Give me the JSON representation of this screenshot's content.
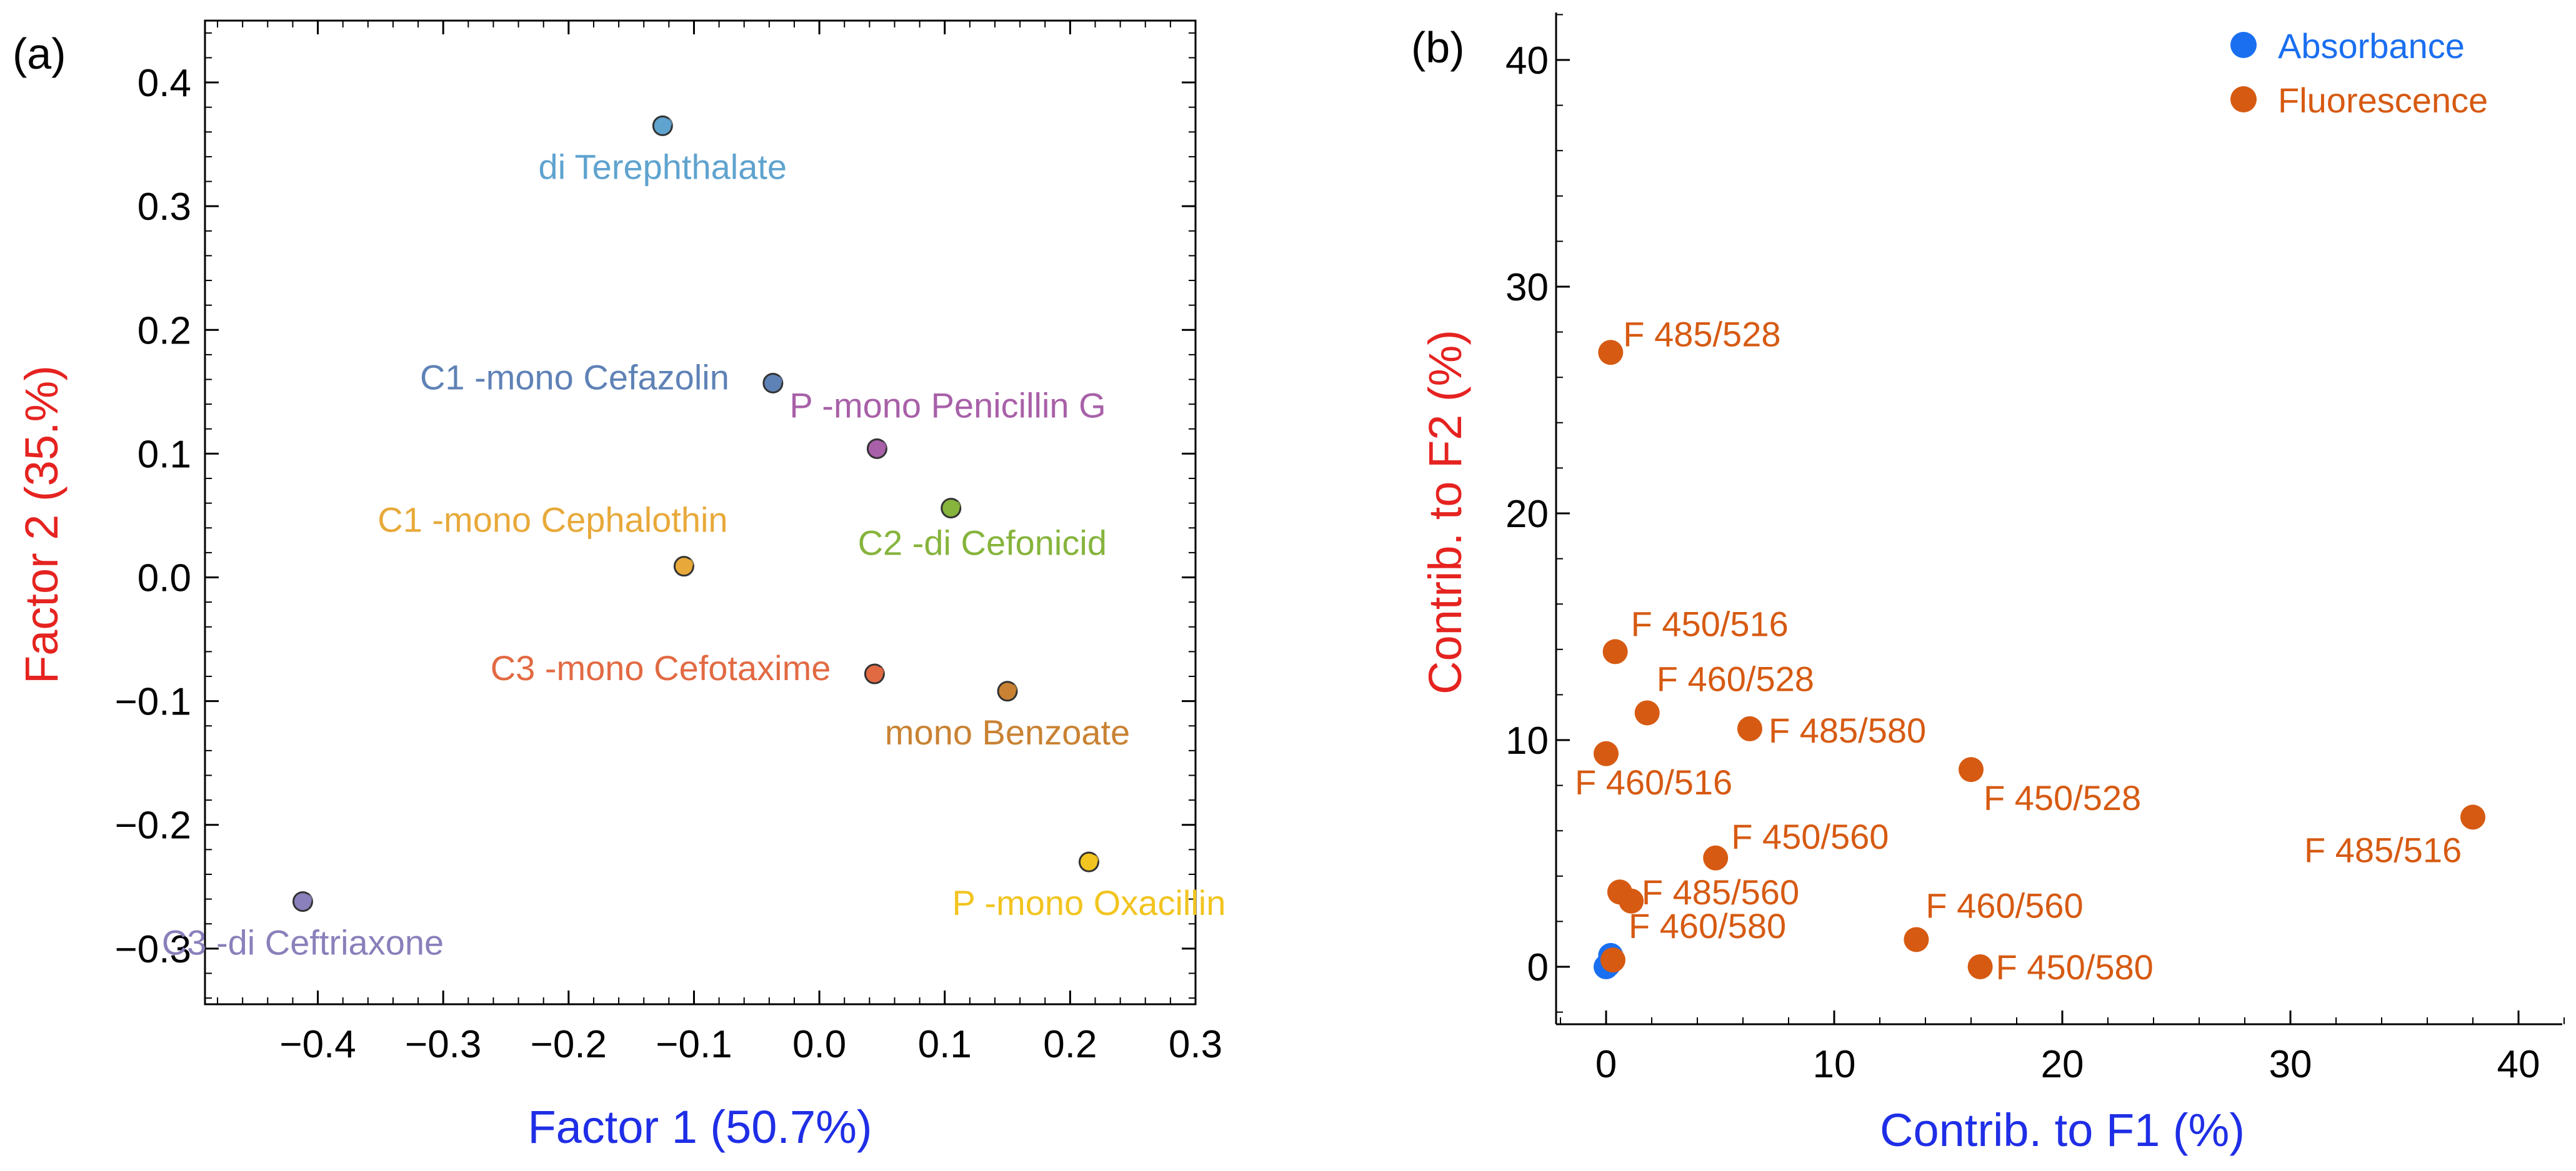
{
  "chart_data": [
    {
      "panel_label": "(a)",
      "type": "scatter",
      "xlabel": "Factor 1 (50.7%)",
      "ylabel": "Factor 2 (35.%)",
      "xlim": [
        -0.49,
        0.3
      ],
      "ylim": [
        -0.345,
        0.45
      ],
      "xticks": [
        -0.4,
        -0.3,
        -0.2,
        -0.1,
        0.0,
        0.1,
        0.2,
        0.3
      ],
      "xtick_labels": [
        "−0.4",
        "−0.3",
        "−0.2",
        "−0.1",
        "0.0",
        "0.1",
        "0.2",
        "0.3"
      ],
      "yticks": [
        -0.3,
        -0.2,
        -0.1,
        0.0,
        0.1,
        0.2,
        0.3,
        0.4
      ],
      "ytick_labels": [
        "−0.3",
        "−0.2",
        "−0.1",
        "0.0",
        "0.1",
        "0.2",
        "0.3",
        "0.4"
      ],
      "points": [
        {
          "label": "di Terephthalate",
          "x": -0.125,
          "y": 0.365,
          "color": "#5fa3cf",
          "label_pos": "below"
        },
        {
          "label": "C1 -mono Cefazolin",
          "x": -0.037,
          "y": 0.157,
          "color": "#5f82b6",
          "label_pos": "left"
        },
        {
          "label": "P -mono Penicillin G",
          "x": 0.046,
          "y": 0.104,
          "color": "#a860a8",
          "label_pos": "right-up"
        },
        {
          "label": "C2 -di Cefonicid",
          "x": 0.105,
          "y": 0.056,
          "color": "#86b43c",
          "label_pos": "below"
        },
        {
          "label": "C1 -mono Cephalothin",
          "x": -0.108,
          "y": 0.009,
          "color": "#e8a93a",
          "label_pos": "up-left"
        },
        {
          "label": "C3 -mono Cefotaxime",
          "x": 0.044,
          "y": -0.078,
          "color": "#e26a43",
          "label_pos": "left"
        },
        {
          "label": "mono Benzoate",
          "x": 0.15,
          "y": -0.092,
          "color": "#c98233",
          "label_pos": "below"
        },
        {
          "label": "P -mono Oxacillin",
          "x": 0.215,
          "y": -0.23,
          "color": "#f2c41f",
          "label_pos": "below"
        },
        {
          "label": "C3 -di Ceftriaxone",
          "x": -0.412,
          "y": -0.262,
          "color": "#8a80bb",
          "label_pos": "below"
        }
      ]
    },
    {
      "panel_label": "(b)",
      "type": "scatter",
      "xlabel": "Contrib. to F1 (%)",
      "ylabel": "Contrib. to F2 (%)",
      "xlim": [
        -2.3,
        42.5
      ],
      "ylim": [
        -2.3,
        42.5
      ],
      "xticks": [
        0,
        10,
        20,
        30,
        40
      ],
      "xtick_labels": [
        "0",
        "10",
        "20",
        "30",
        "40"
      ],
      "yticks": [
        0,
        10,
        20,
        30,
        40
      ],
      "ytick_labels": [
        "0",
        "10",
        "20",
        "30",
        "40"
      ],
      "legend": [
        {
          "name": "Absorbance",
          "color": "#1a6ff0"
        },
        {
          "name": "Fluorescence",
          "color": "#d65a12"
        }
      ],
      "legend_position": "top-right",
      "series": [
        {
          "name": "Absorbance",
          "color": "#1a6ff0",
          "points": [
            {
              "x": 0.1,
              "y": 0.1
            },
            {
              "x": 0.2,
              "y": 0.5
            },
            {
              "x": 0.0,
              "y": 0.0
            }
          ]
        },
        {
          "name": "Fluorescence",
          "color": "#d65a12",
          "points": [
            {
              "label": "F 485/528",
              "x": 0.2,
              "y": 27.1
            },
            {
              "label": "F 450/516",
              "x": 0.4,
              "y": 13.9
            },
            {
              "label": "F 460/528",
              "x": 1.8,
              "y": 11.2
            },
            {
              "label": "F 485/580",
              "x": 6.3,
              "y": 10.5
            },
            {
              "label": "F 460/516",
              "x": 0.0,
              "y": 9.4
            },
            {
              "label": "F 450/528",
              "x": 16.0,
              "y": 8.7
            },
            {
              "label": "F 485/516",
              "x": 38.0,
              "y": 6.6
            },
            {
              "label": "F 450/560",
              "x": 4.8,
              "y": 4.8
            },
            {
              "label": "F 485/560",
              "x": 0.6,
              "y": 3.3
            },
            {
              "label": "",
              "x": 1.1,
              "y": 2.9
            },
            {
              "label": "F 460/560",
              "x": 13.6,
              "y": 1.2
            },
            {
              "label": "F 460/580",
              "x": 0.3,
              "y": 0.3
            },
            {
              "label": "F 450/580",
              "x": 16.4,
              "y": 0.0
            }
          ]
        }
      ]
    }
  ]
}
